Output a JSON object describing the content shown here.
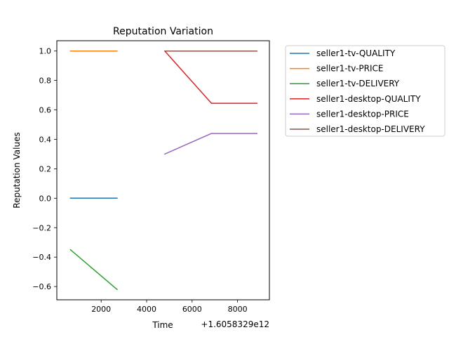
{
  "chart_data": {
    "type": "line",
    "title": "Reputation Variation",
    "xlabel": "Time",
    "ylabel": "Reputation Values",
    "x_offset_label": "+1.6058329e12",
    "xlim": [
      50,
      9400
    ],
    "ylim": [
      -0.69,
      1.07
    ],
    "xticks": [
      2000,
      4000,
      6000,
      8000
    ],
    "xtick_labels": [
      "2000",
      "4000",
      "6000",
      "8000"
    ],
    "yticks": [
      -0.6,
      -0.4,
      -0.2,
      0.0,
      0.2,
      0.4,
      0.6,
      0.8,
      1.0
    ],
    "ytick_labels": [
      "−0.6",
      "−0.4",
      "−0.2",
      "0.0",
      "0.2",
      "0.4",
      "0.6",
      "0.8",
      "1.0"
    ],
    "grid": false,
    "legend_position": "outside-right",
    "series": [
      {
        "name": "seller1-tv-QUALITY",
        "color": "#1f77b4",
        "x": [
          650,
          2700
        ],
        "y": [
          0.0,
          0.0
        ]
      },
      {
        "name": "seller1-tv-PRICE",
        "color": "#ff7f0e",
        "x": [
          650,
          2700
        ],
        "y": [
          1.0,
          1.0
        ]
      },
      {
        "name": "seller1-tv-DELIVERY",
        "color": "#2ca02c",
        "x": [
          650,
          2700
        ],
        "y": [
          -0.35,
          -0.62
        ]
      },
      {
        "name": "seller1-desktop-QUALITY",
        "color": "#d62728",
        "x": [
          4800,
          6850,
          8850
        ],
        "y": [
          1.0,
          0.645,
          0.645
        ]
      },
      {
        "name": "seller1-desktop-PRICE",
        "color": "#9467bd",
        "x": [
          4800,
          6850,
          8850
        ],
        "y": [
          0.3,
          0.44,
          0.44
        ]
      },
      {
        "name": "seller1-desktop-DELIVERY",
        "color": "#8c564b",
        "x": [
          4800,
          6850,
          8850
        ],
        "y": [
          1.0,
          1.0,
          1.0
        ]
      }
    ]
  }
}
